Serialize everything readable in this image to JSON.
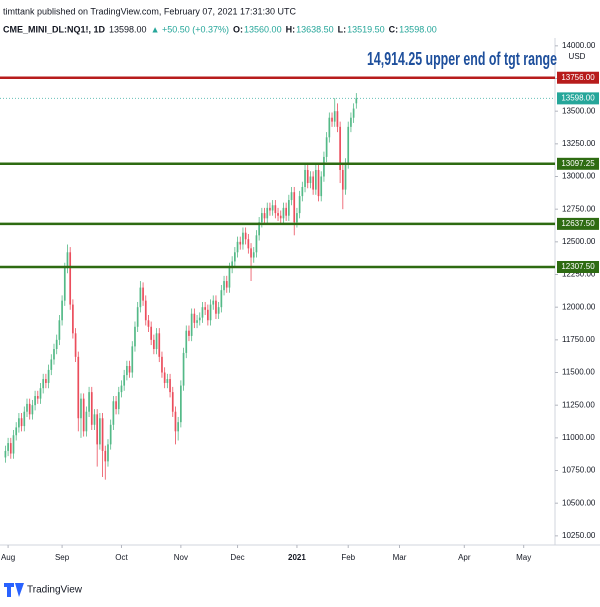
{
  "header": {
    "published": "timttank published on TradingView.com, February 07, 2021 17:31:30 UTC",
    "symbol": "CME_MINI_DL:NQ1!, 1D",
    "last": "13598.00",
    "change": "▲ +50.50 (+0.37%)",
    "ohlc_text": [
      {
        "key": "O:",
        "val": "13560.00"
      },
      {
        "key": "H:",
        "val": "13638.50"
      },
      {
        "key": "L:",
        "val": "13519.50"
      },
      {
        "key": "C:",
        "val": "13598.00"
      }
    ],
    "logo": "TradingView"
  },
  "chart_data": {
    "type": "candlestick",
    "annotation": "14,914.25 upper end of tgt range",
    "y_unit": "USD",
    "up_color": "#53b987",
    "down_color": "#eb4d5c",
    "xlim": [
      -2,
      203.6
    ],
    "xticks": [
      {
        "value": 1,
        "label": "Aug"
      },
      {
        "value": 21,
        "label": "Sep"
      },
      {
        "value": 43,
        "label": "Oct"
      },
      {
        "value": 65,
        "label": "Nov"
      },
      {
        "value": 86,
        "label": "Dec"
      },
      {
        "value": 108,
        "label": "2021"
      },
      {
        "value": 127,
        "label": "Feb"
      },
      {
        "value": 146,
        "label": "Mar"
      },
      {
        "value": 170,
        "label": "Apr"
      },
      {
        "value": 192,
        "label": "May"
      }
    ],
    "ylim": [
      10180,
      14060
    ],
    "yticks": [
      {
        "value": 10250,
        "label": "10250.00"
      },
      {
        "value": 10500,
        "label": "10500.00"
      },
      {
        "value": 10750,
        "label": "10750.00"
      },
      {
        "value": 11000,
        "label": "11000.00"
      },
      {
        "value": 11250,
        "label": "11250.00"
      },
      {
        "value": 11500,
        "label": "11500.00"
      },
      {
        "value": 11750,
        "label": "11750.00"
      },
      {
        "value": 12000,
        "label": "12000.00"
      },
      {
        "value": 12250,
        "label": "12250.00"
      },
      {
        "value": 12500,
        "label": "12500.00"
      },
      {
        "value": 12750,
        "label": "12750.00"
      },
      {
        "value": 13000,
        "label": "13000.00"
      },
      {
        "value": 13250,
        "label": "13250.00"
      },
      {
        "value": 13500,
        "label": "13500.00"
      },
      {
        "value": 13750,
        "label": "13750.00"
      },
      {
        "value": 14000,
        "label": "14000.00"
      }
    ],
    "levels": [
      {
        "value": 13756,
        "label": "13756.00",
        "color": "#b71c1c",
        "style": "solid"
      },
      {
        "value": 13598,
        "label": "13598.00",
        "color": "#26a69a",
        "style": "dotted"
      },
      {
        "value": 13097.25,
        "label": "13097.25",
        "color": "#2e6b12",
        "style": "solid"
      },
      {
        "value": 12637.5,
        "label": "12637.50",
        "color": "#2e6b12",
        "style": "solid"
      },
      {
        "value": 12307.5,
        "label": "12307.50",
        "color": "#2e6b12",
        "style": "solid"
      }
    ],
    "ohlc": [
      [
        10850,
        10940,
        10810,
        10900
      ],
      [
        10900,
        11000,
        10860,
        10960
      ],
      [
        10960,
        11000,
        10840,
        10880
      ],
      [
        10880,
        11060,
        10840,
        11020
      ],
      [
        11020,
        11120,
        10980,
        11080
      ],
      [
        11080,
        11190,
        11040,
        11150
      ],
      [
        11150,
        11190,
        11050,
        11090
      ],
      [
        11090,
        11240,
        11050,
        11200
      ],
      [
        11200,
        11300,
        11160,
        11260
      ],
      [
        11260,
        11300,
        11140,
        11180
      ],
      [
        11180,
        11290,
        11140,
        11250
      ],
      [
        11250,
        11360,
        11210,
        11320
      ],
      [
        11320,
        11360,
        11260,
        11300
      ],
      [
        11300,
        11420,
        11260,
        11380
      ],
      [
        11380,
        11490,
        11340,
        11450
      ],
      [
        11450,
        11490,
        11380,
        11420
      ],
      [
        11420,
        11560,
        11380,
        11520
      ],
      [
        11520,
        11640,
        11480,
        11600
      ],
      [
        11600,
        11720,
        11560,
        11680
      ],
      [
        11680,
        11790,
        11640,
        11750
      ],
      [
        11750,
        11940,
        11710,
        11900
      ],
      [
        11900,
        12090,
        11860,
        12050
      ],
      [
        12050,
        12340,
        12010,
        12300
      ],
      [
        12300,
        12480,
        12260,
        12420
      ],
      [
        12420,
        12460,
        11980,
        12020
      ],
      [
        12020,
        12060,
        11760,
        11800
      ],
      [
        11800,
        11840,
        11580,
        11620
      ],
      [
        11620,
        11660,
        11050,
        11150
      ],
      [
        11150,
        11340,
        11000,
        11300
      ],
      [
        11300,
        11340,
        11010,
        11050
      ],
      [
        11050,
        11240,
        11010,
        11200
      ],
      [
        11200,
        11390,
        11160,
        11350
      ],
      [
        11350,
        11390,
        11060,
        11100
      ],
      [
        11100,
        11220,
        11060,
        11180
      ],
      [
        11180,
        11220,
        10780,
        10950
      ],
      [
        10950,
        11190,
        10910,
        11150
      ],
      [
        11150,
        11190,
        10700,
        10900
      ],
      [
        10900,
        10940,
        10680,
        10820
      ],
      [
        10820,
        10990,
        10780,
        10950
      ],
      [
        10950,
        11140,
        10910,
        11100
      ],
      [
        11100,
        11320,
        11060,
        11280
      ],
      [
        11280,
        11320,
        11180,
        11220
      ],
      [
        11220,
        11390,
        11180,
        11350
      ],
      [
        11350,
        11440,
        11310,
        11400
      ],
      [
        11400,
        11520,
        11360,
        11480
      ],
      [
        11480,
        11590,
        11440,
        11550
      ],
      [
        11550,
        11590,
        11460,
        11500
      ],
      [
        11500,
        11740,
        11460,
        11700
      ],
      [
        11700,
        11890,
        11660,
        11850
      ],
      [
        11850,
        12040,
        11810,
        12000
      ],
      [
        12000,
        12200,
        11960,
        12150
      ],
      [
        12150,
        12190,
        12010,
        12050
      ],
      [
        12050,
        12090,
        11860,
        11900
      ],
      [
        11900,
        11940,
        11810,
        11850
      ],
      [
        11850,
        11890,
        11710,
        11750
      ],
      [
        11750,
        11790,
        11640,
        11680
      ],
      [
        11680,
        11840,
        11640,
        11800
      ],
      [
        11800,
        11840,
        11580,
        11620
      ],
      [
        11620,
        11660,
        11460,
        11500
      ],
      [
        11500,
        11540,
        11380,
        11420
      ],
      [
        11420,
        11490,
        11380,
        11450
      ],
      [
        11450,
        11490,
        11310,
        11350
      ],
      [
        11350,
        11390,
        11160,
        11200
      ],
      [
        11200,
        11240,
        10950,
        11050
      ],
      [
        11050,
        11160,
        10980,
        11120
      ],
      [
        11120,
        11440,
        11080,
        11400
      ],
      [
        11400,
        11690,
        11360,
        11650
      ],
      [
        11650,
        11860,
        11610,
        11820
      ],
      [
        11820,
        11860,
        11740,
        11780
      ],
      [
        11780,
        11990,
        11740,
        11950
      ],
      [
        11950,
        11990,
        11840,
        11880
      ],
      [
        11880,
        11940,
        11840,
        11900
      ],
      [
        11900,
        11960,
        11860,
        11920
      ],
      [
        11920,
        12040,
        11880,
        12000
      ],
      [
        12000,
        12040,
        11940,
        11980
      ],
      [
        11980,
        12020,
        11860,
        11900
      ],
      [
        11900,
        12060,
        11860,
        12020
      ],
      [
        12020,
        12090,
        11980,
        12050
      ],
      [
        12050,
        12090,
        11910,
        11950
      ],
      [
        11950,
        12040,
        11910,
        12000
      ],
      [
        12000,
        12170,
        11960,
        12130
      ],
      [
        12130,
        12240,
        12090,
        12200
      ],
      [
        12200,
        12240,
        12110,
        12150
      ],
      [
        12150,
        12340,
        12110,
        12300
      ],
      [
        12300,
        12390,
        12260,
        12350
      ],
      [
        12350,
        12460,
        12310,
        12420
      ],
      [
        12420,
        12540,
        12380,
        12500
      ],
      [
        12500,
        12540,
        12440,
        12480
      ],
      [
        12480,
        12610,
        12440,
        12570
      ],
      [
        12570,
        12610,
        12480,
        12520
      ],
      [
        12520,
        12560,
        12410,
        12450
      ],
      [
        12450,
        12490,
        12200,
        12380
      ],
      [
        12380,
        12460,
        12340,
        12420
      ],
      [
        12420,
        12590,
        12380,
        12550
      ],
      [
        12550,
        12690,
        12510,
        12650
      ],
      [
        12650,
        12760,
        12610,
        12720
      ],
      [
        12720,
        12760,
        12640,
        12680
      ],
      [
        12680,
        12800,
        12640,
        12760
      ],
      [
        12760,
        12800,
        12700,
        12740
      ],
      [
        12740,
        12820,
        12700,
        12780
      ],
      [
        12780,
        12820,
        12680,
        12720
      ],
      [
        12720,
        12760,
        12660,
        12700
      ],
      [
        12700,
        12740,
        12640,
        12680
      ],
      [
        12680,
        12800,
        12640,
        12760
      ],
      [
        12760,
        12800,
        12660,
        12700
      ],
      [
        12700,
        12860,
        12660,
        12820
      ],
      [
        12820,
        12920,
        12780,
        12880
      ],
      [
        12880,
        12920,
        12550,
        12650
      ],
      [
        12650,
        12760,
        12610,
        12720
      ],
      [
        12720,
        12890,
        12680,
        12850
      ],
      [
        12850,
        12960,
        12810,
        12920
      ],
      [
        12920,
        13100,
        12880,
        13050
      ],
      [
        13050,
        13090,
        12910,
        12950
      ],
      [
        12950,
        13040,
        12910,
        13000
      ],
      [
        13000,
        13040,
        12860,
        12900
      ],
      [
        12900,
        13090,
        12860,
        13050
      ],
      [
        13050,
        13090,
        12810,
        12850
      ],
      [
        12850,
        13040,
        12810,
        13000
      ],
      [
        13000,
        13190,
        12960,
        13150
      ],
      [
        13150,
        13340,
        13110,
        13300
      ],
      [
        13300,
        13490,
        13260,
        13450
      ],
      [
        13450,
        13490,
        13380,
        13420
      ],
      [
        13420,
        13600,
        13380,
        13500
      ],
      [
        13500,
        13560,
        13340,
        13380
      ],
      [
        13380,
        13420,
        12950,
        13050
      ],
      [
        13050,
        13090,
        12750,
        12900
      ],
      [
        12900,
        13140,
        12860,
        13100
      ],
      [
        13100,
        13420,
        13060,
        13380
      ],
      [
        13380,
        13490,
        13340,
        13450
      ],
      [
        13450,
        13560,
        13410,
        13520
      ],
      [
        13560,
        13638.5,
        13519.5,
        13598
      ]
    ]
  }
}
